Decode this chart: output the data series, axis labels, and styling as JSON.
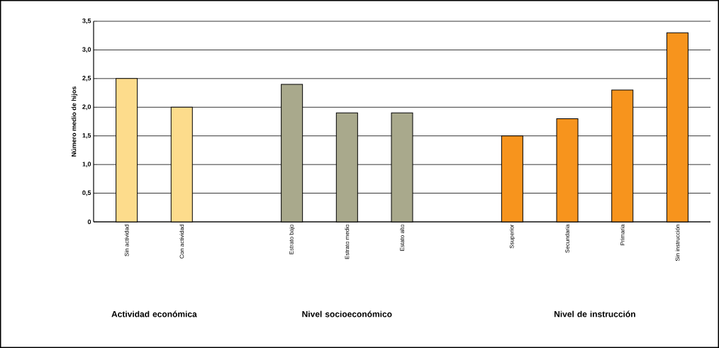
{
  "chart_data": {
    "type": "bar",
    "ylabel": "Número medio de hijos",
    "categories": [
      "Sin actividad",
      "Con actividad",
      null,
      "Estrato bajo",
      "Estrato medio",
      "Estato alto",
      null,
      "Ssuperior",
      "Secundaria",
      "Primaria",
      "Sin instrucción"
    ],
    "values": [
      2.5,
      2.0,
      null,
      2.4,
      1.9,
      1.9,
      null,
      1.5,
      1.8,
      2.3,
      3.3
    ],
    "colors": [
      "#fddc8c",
      "#fddc8c",
      null,
      "#a9a98c",
      "#a9a98c",
      "#a9a98c",
      null,
      "#f7941d",
      "#f7941d",
      "#f7941d",
      "#f7941d"
    ],
    "ylim": [
      0,
      3.5
    ],
    "yticks": [
      0,
      {
        "value": 0.5,
        "label": "0,5"
      },
      {
        "value": 1.0,
        "label": "1,0"
      },
      {
        "value": 1.5,
        "label": "1,5"
      },
      {
        "value": 2.0,
        "label": "2,0"
      },
      {
        "value": 2.5,
        "label": "2,5"
      },
      {
        "value": 3.0,
        "label": "3,0"
      },
      {
        "value": 3.5,
        "label": "3,5"
      }
    ],
    "grid": "y",
    "annotations": [
      "**Actividad económica**",
      "**Nivel socioeconómico**",
      "**Nivel de instrucción**"
    ]
  }
}
